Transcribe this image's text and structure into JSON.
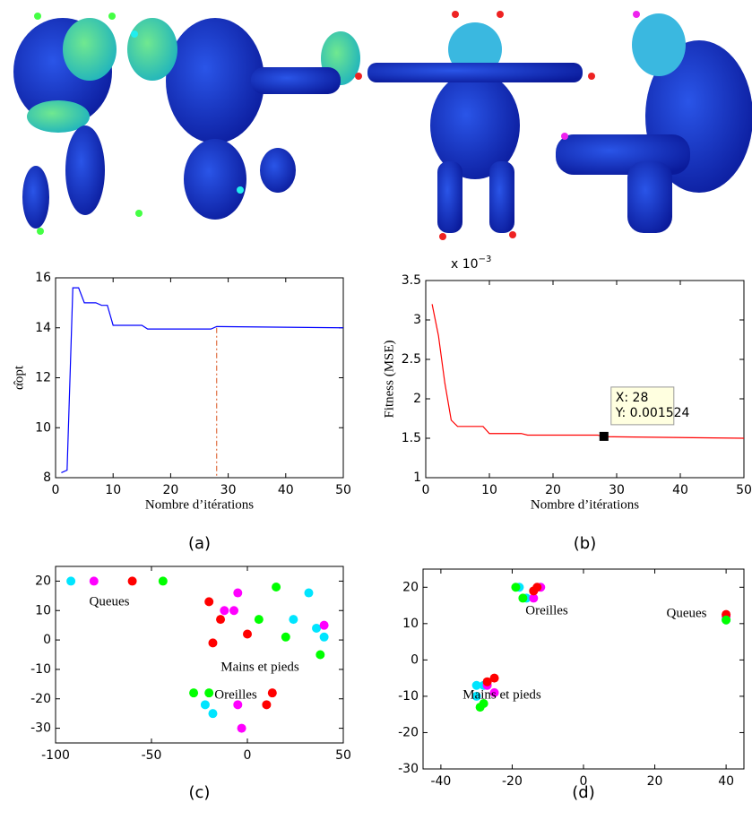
{
  "chart_data": [
    {
      "type": "line",
      "caption": "(a)",
      "xlabel": "Nombre d’itérations",
      "ylabel": "α̂opt",
      "xlim": [
        0,
        50
      ],
      "xticks": [
        0,
        10,
        20,
        30,
        40,
        50
      ],
      "ylim": [
        8,
        16
      ],
      "yticks": [
        8,
        10,
        12,
        14,
        16
      ],
      "vline": 28,
      "vline_color": "#d9541e",
      "series": [
        {
          "color": "#0000ff",
          "x": [
            1,
            2,
            3,
            4,
            5,
            7,
            8,
            9,
            10,
            15,
            16,
            27,
            28,
            50
          ],
          "values": [
            8.2,
            8.3,
            15.6,
            15.6,
            15.0,
            15.0,
            14.9,
            14.9,
            14.1,
            14.1,
            13.95,
            13.95,
            14.05,
            14.0
          ]
        }
      ]
    },
    {
      "type": "line",
      "caption": "(b)",
      "xlabel": "Nombre d’itérations",
      "ylabel": "Fitness (MSE)",
      "y_multiplier": {
        "base": "x 10",
        "exponent": "−3"
      },
      "xlim": [
        0,
        50
      ],
      "xticks": [
        0,
        10,
        20,
        30,
        40,
        50
      ],
      "ylim": [
        1,
        3.5
      ],
      "yticks": [
        1,
        1.5,
        2,
        2.5,
        3,
        3.5
      ],
      "datatip": {
        "x": 28,
        "y": 1.524,
        "label_x": "X: 28",
        "label_y": "Y: 0.001524"
      },
      "series": [
        {
          "color": "#ff0000",
          "x": [
            1,
            2,
            3,
            4,
            5,
            9,
            10,
            15,
            16,
            27,
            28,
            50
          ],
          "values": [
            3.2,
            2.8,
            2.2,
            1.73,
            1.65,
            1.65,
            1.56,
            1.56,
            1.54,
            1.54,
            1.52,
            1.5
          ]
        }
      ]
    },
    {
      "type": "scatter",
      "caption": "(c)",
      "xlim": [
        -100,
        50
      ],
      "xticks": [
        -100,
        -50,
        0,
        50
      ],
      "ylim": [
        -35,
        25
      ],
      "yticks": [
        -30,
        -20,
        -10,
        0,
        10,
        20
      ],
      "annotations": [
        "Queues",
        "Mains et pieds",
        "Oreilles"
      ],
      "series": [
        {
          "color": "#00e5ff",
          "x": [
            -92,
            -18,
            -22,
            24,
            32,
            36,
            40
          ],
          "values": [
            20,
            -25,
            -22,
            7,
            16,
            4,
            1
          ]
        },
        {
          "color": "#ff00ff",
          "x": [
            -80,
            -5,
            -12,
            -5,
            -3,
            40,
            -7
          ],
          "values": [
            20,
            16,
            10,
            -22,
            -30,
            5,
            10
          ]
        },
        {
          "color": "#ff0000",
          "x": [
            -60,
            -20,
            -18,
            -14,
            0,
            10,
            13
          ],
          "values": [
            20,
            13,
            -1,
            7,
            2,
            -22,
            -18
          ]
        },
        {
          "color": "#00ff00",
          "x": [
            -44,
            -28,
            -20,
            6,
            15,
            20,
            38
          ],
          "values": [
            20,
            -18,
            -18,
            7,
            18,
            1,
            -5
          ]
        }
      ]
    },
    {
      "type": "scatter",
      "caption": "(d)",
      "xlim": [
        -45,
        45
      ],
      "xticks": [
        -40,
        -20,
        0,
        20,
        40
      ],
      "ylim": [
        -30,
        25
      ],
      "yticks": [
        -30,
        -20,
        -10,
        0,
        10,
        20
      ],
      "annotations": [
        "Oreilles",
        "Queues",
        "Mains et pieds"
      ],
      "series": [
        {
          "color": "#00e5ff",
          "x": [
            -18,
            -16,
            -30,
            -30,
            -28,
            40
          ],
          "values": [
            20,
            17,
            -7,
            -10,
            -7,
            11
          ]
        },
        {
          "color": "#ff00ff",
          "x": [
            -12,
            -14,
            -25,
            -27,
            40
          ],
          "values": [
            20,
            17,
            -9,
            -7,
            12
          ]
        },
        {
          "color": "#ff0000",
          "x": [
            -14,
            -13,
            -25,
            -27,
            40
          ],
          "values": [
            19,
            20,
            -5,
            -6,
            12.5
          ]
        },
        {
          "color": "#00ff00",
          "x": [
            -19,
            -17,
            -29,
            -28,
            40
          ],
          "values": [
            20,
            17,
            -13,
            -12,
            11
          ]
        }
      ]
    }
  ]
}
